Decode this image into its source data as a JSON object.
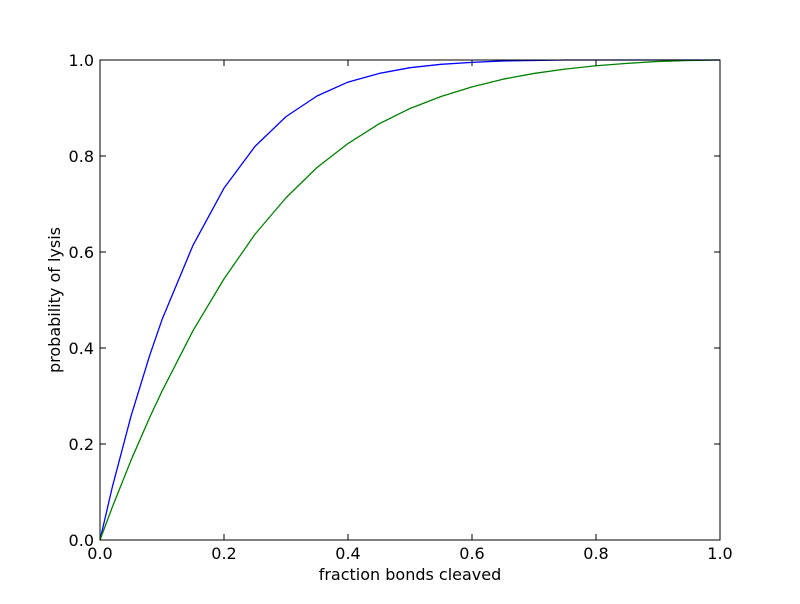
{
  "chart_data": {
    "type": "line",
    "xlabel": "fraction bonds cleaved",
    "ylabel": "probability of lysis",
    "xlim": [
      0.0,
      1.0
    ],
    "ylim": [
      0.0,
      1.0
    ],
    "xticks": [
      "0.0",
      "0.2",
      "0.4",
      "0.6",
      "0.8",
      "1.0"
    ],
    "yticks": [
      "0.0",
      "0.2",
      "0.4",
      "0.6",
      "0.8",
      "1.0"
    ],
    "grid": false,
    "series": [
      {
        "color": "#0000ff",
        "x": [
          0.0,
          0.02,
          0.05,
          0.08,
          0.1,
          0.15,
          0.2,
          0.25,
          0.3,
          0.35,
          0.4,
          0.45,
          0.5,
          0.55,
          0.6,
          0.65,
          0.7,
          0.75,
          0.8,
          0.85,
          0.9,
          0.95,
          1.0
        ],
        "y": [
          0.0,
          0.111,
          0.258,
          0.384,
          0.459,
          0.614,
          0.733,
          0.82,
          0.882,
          0.925,
          0.954,
          0.972,
          0.984,
          0.991,
          0.995,
          0.998,
          0.999,
          1.0,
          1.0,
          1.0,
          1.0,
          1.0,
          1.0
        ]
      },
      {
        "color": "#008000",
        "x": [
          0.0,
          0.02,
          0.05,
          0.08,
          0.1,
          0.15,
          0.2,
          0.25,
          0.3,
          0.35,
          0.4,
          0.45,
          0.5,
          0.55,
          0.6,
          0.65,
          0.7,
          0.75,
          0.8,
          0.85,
          0.9,
          0.95,
          1.0
        ],
        "y": [
          0.0,
          0.069,
          0.166,
          0.255,
          0.31,
          0.436,
          0.544,
          0.637,
          0.713,
          0.776,
          0.826,
          0.867,
          0.899,
          0.924,
          0.944,
          0.96,
          0.972,
          0.981,
          0.988,
          0.993,
          0.997,
          0.999,
          1.0
        ]
      }
    ]
  }
}
